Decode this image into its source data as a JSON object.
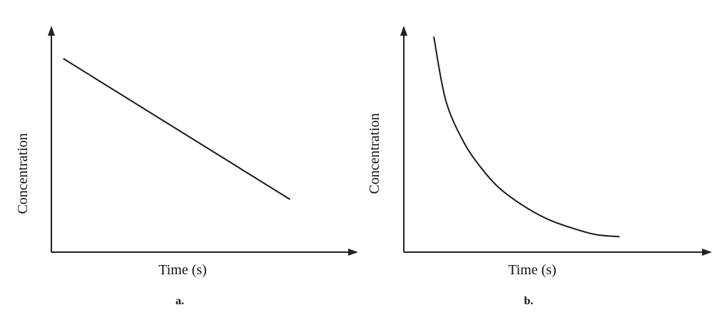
{
  "chart_data": [
    {
      "type": "line",
      "panel_label": "a.",
      "xlabel": "Time (s)",
      "ylabel": "Concentration",
      "xlim": [
        0,
        10
      ],
      "ylim": [
        0,
        10
      ],
      "grid": false,
      "series": [
        {
          "x": [
            0.4,
            8.0
          ],
          "y": [
            8.8,
            2.4
          ]
        }
      ]
    },
    {
      "type": "line",
      "panel_label": "b.",
      "xlabel": "Time (s)",
      "ylabel": "Concentration",
      "xlim": [
        0,
        10
      ],
      "ylim": [
        0,
        10
      ],
      "grid": false,
      "series": [
        {
          "x": [
            1.0,
            1.4,
            2.0,
            2.6,
            3.2,
            4.0,
            4.8,
            5.6,
            6.4,
            7.2
          ],
          "y": [
            9.8,
            6.9,
            5.0,
            3.8,
            2.9,
            2.1,
            1.5,
            1.1,
            0.8,
            0.7
          ]
        }
      ]
    }
  ]
}
